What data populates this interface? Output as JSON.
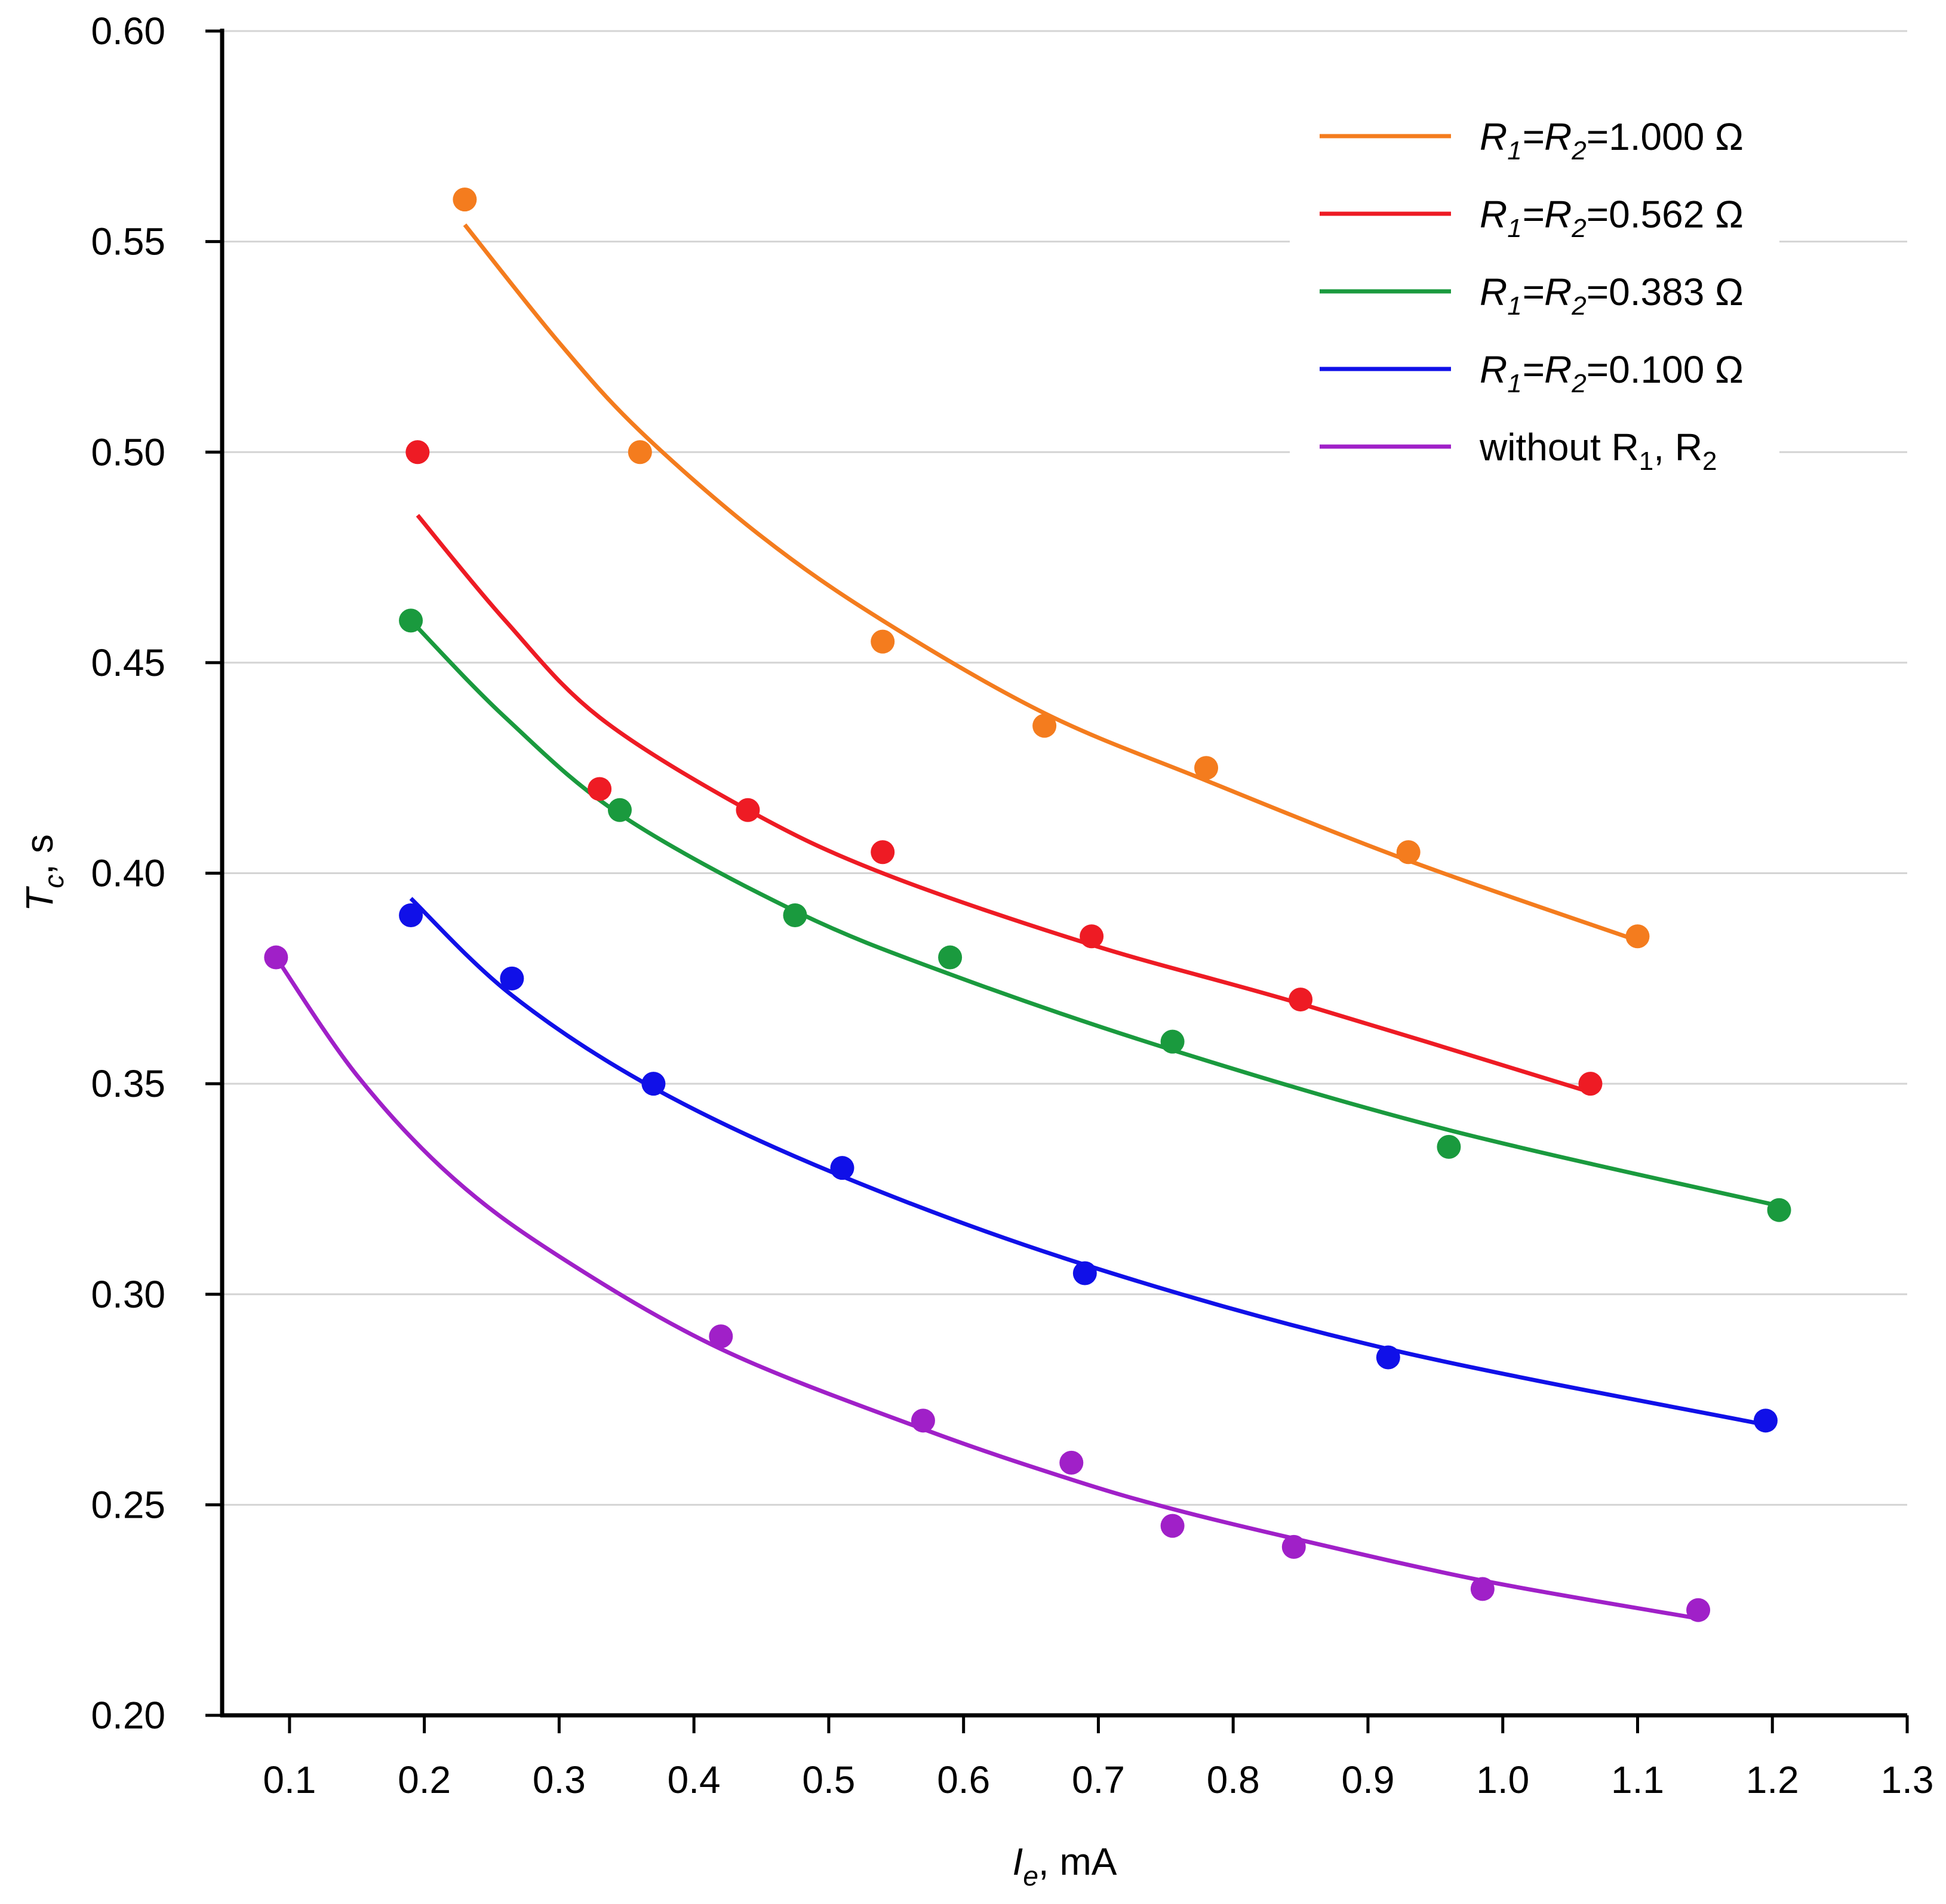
{
  "chart_data": {
    "type": "scatter",
    "title": "",
    "xlabel": {
      "main": "I",
      "sub": "e",
      "unit": ", mA"
    },
    "ylabel": {
      "main": "T",
      "sub": "c",
      "unit": ", s"
    },
    "xlim": [
      0.05,
      1.3
    ],
    "ylim": [
      0.2,
      0.6
    ],
    "x_ticks": [
      0.1,
      0.2,
      0.3,
      0.4,
      0.5,
      0.6,
      0.7,
      0.8,
      0.9,
      1.0,
      1.1,
      1.2,
      1.3
    ],
    "x_tick_labels": [
      "0.1",
      "0.2",
      "0.3",
      "0.4",
      "0.5",
      "0.6",
      "0.7",
      "0.8",
      "0.9",
      "1.0",
      "1.1",
      "1.2",
      "1.3"
    ],
    "y_ticks": [
      0.2,
      0.25,
      0.3,
      0.35,
      0.4,
      0.45,
      0.5,
      0.55,
      0.6
    ],
    "y_tick_labels": [
      "0.20",
      "0.25",
      "0.30",
      "0.35",
      "0.40",
      "0.45",
      "0.50",
      "0.55",
      "0.60"
    ],
    "grid": "horizontal",
    "legend_position": "top-right",
    "series": [
      {
        "name": "R1=R2=1.000 Ω",
        "legend": {
          "pre": "",
          "r1": "R",
          "s1": "1",
          "eq": "=",
          "r2": "R",
          "s2": "2",
          "val": "=1.000 Ω"
        },
        "color": "#f47c1e",
        "points": [
          [
            0.23,
            0.56
          ],
          [
            0.36,
            0.5
          ],
          [
            0.54,
            0.455
          ],
          [
            0.66,
            0.435
          ],
          [
            0.78,
            0.425
          ],
          [
            0.93,
            0.405
          ],
          [
            1.1,
            0.385
          ]
        ],
        "fit": [
          [
            0.23,
            0.554
          ],
          [
            0.3,
            0.526
          ],
          [
            0.36,
            0.505
          ],
          [
            0.45,
            0.48
          ],
          [
            0.54,
            0.46
          ],
          [
            0.66,
            0.438
          ],
          [
            0.78,
            0.422
          ],
          [
            0.93,
            0.403
          ],
          [
            1.1,
            0.384
          ]
        ]
      },
      {
        "name": "R1=R2=0.562 Ω",
        "legend": {
          "pre": "",
          "r1": "R",
          "s1": "1",
          "eq": "=",
          "r2": "R",
          "s2": "2",
          "val": "=0.562 Ω"
        },
        "color": "#ee1b24",
        "points": [
          [
            0.195,
            0.5
          ],
          [
            0.33,
            0.42
          ],
          [
            0.44,
            0.415
          ],
          [
            0.54,
            0.405
          ],
          [
            0.695,
            0.385
          ],
          [
            0.85,
            0.37
          ],
          [
            1.065,
            0.35
          ]
        ],
        "fit": [
          [
            0.195,
            0.485
          ],
          [
            0.26,
            0.46
          ],
          [
            0.33,
            0.437
          ],
          [
            0.44,
            0.415
          ],
          [
            0.54,
            0.4
          ],
          [
            0.695,
            0.383
          ],
          [
            0.85,
            0.369
          ],
          [
            1.065,
            0.348
          ]
        ]
      },
      {
        "name": "R1=R2=0.383 Ω",
        "legend": {
          "pre": "",
          "r1": "R",
          "s1": "1",
          "eq": "=",
          "r2": "R",
          "s2": "2",
          "val": "=0.383 Ω"
        },
        "color": "#1a9a3e",
        "points": [
          [
            0.19,
            0.46
          ],
          [
            0.345,
            0.415
          ],
          [
            0.475,
            0.39
          ],
          [
            0.59,
            0.38
          ],
          [
            0.755,
            0.36
          ],
          [
            0.96,
            0.335
          ],
          [
            1.205,
            0.32
          ]
        ],
        "fit": [
          [
            0.19,
            0.46
          ],
          [
            0.26,
            0.437
          ],
          [
            0.345,
            0.414
          ],
          [
            0.475,
            0.391
          ],
          [
            0.59,
            0.376
          ],
          [
            0.755,
            0.358
          ],
          [
            0.96,
            0.339
          ],
          [
            1.205,
            0.321
          ]
        ]
      },
      {
        "name": "R1=R2=0.100 Ω",
        "legend": {
          "pre": "",
          "r1": "R",
          "s1": "1",
          "eq": "=",
          "r2": "R",
          "s2": "2",
          "val": "=0.100 Ω"
        },
        "color": "#1010e8",
        "points": [
          [
            0.19,
            0.39
          ],
          [
            0.265,
            0.375
          ],
          [
            0.37,
            0.35
          ],
          [
            0.51,
            0.33
          ],
          [
            0.69,
            0.305
          ],
          [
            0.915,
            0.285
          ],
          [
            1.195,
            0.27
          ]
        ],
        "fit": [
          [
            0.19,
            0.394
          ],
          [
            0.265,
            0.371
          ],
          [
            0.37,
            0.349
          ],
          [
            0.51,
            0.328
          ],
          [
            0.69,
            0.307
          ],
          [
            0.915,
            0.287
          ],
          [
            1.195,
            0.269
          ]
        ]
      },
      {
        "name": "without R1, R2",
        "legend": {
          "pre": "without R",
          "s1": "1",
          "mid": ", R",
          "s2": "2"
        },
        "color": "#a020c8",
        "points": [
          [
            0.09,
            0.38
          ],
          [
            0.42,
            0.29
          ],
          [
            0.57,
            0.27
          ],
          [
            0.68,
            0.26
          ],
          [
            0.755,
            0.245
          ],
          [
            0.845,
            0.24
          ],
          [
            0.985,
            0.23
          ],
          [
            1.145,
            0.225
          ]
        ],
        "fit": [
          [
            0.09,
            0.38
          ],
          [
            0.15,
            0.352
          ],
          [
            0.22,
            0.328
          ],
          [
            0.3,
            0.309
          ],
          [
            0.42,
            0.287
          ],
          [
            0.57,
            0.268
          ],
          [
            0.68,
            0.256
          ],
          [
            0.755,
            0.249
          ],
          [
            0.845,
            0.242
          ],
          [
            0.985,
            0.232
          ],
          [
            1.145,
            0.223
          ]
        ]
      }
    ]
  }
}
